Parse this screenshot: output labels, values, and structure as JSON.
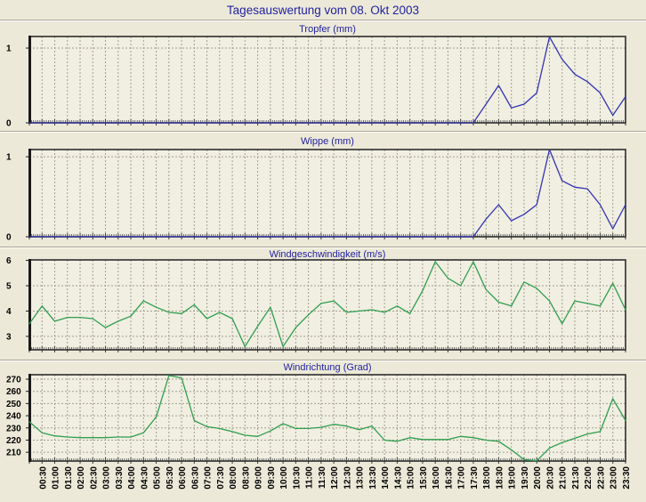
{
  "page": {
    "title": "Tagesauswertung vom 08. Okt 2003"
  },
  "colors": {
    "page_bg": "#ece9d8",
    "plot_bg": "#f1efe1",
    "grid": "#a29f90",
    "frame": "#2e2e2e",
    "title_blue": "#2222a2",
    "rain_line_blue": "#3333b3",
    "wind_line_green": "#2f9e4f",
    "tick_label": "#000000"
  },
  "chart_data": {
    "type": "line",
    "x_categories": [
      "00:00",
      "00:30",
      "01:00",
      "01:30",
      "02:00",
      "02:30",
      "03:00",
      "03:30",
      "04:00",
      "04:30",
      "05:00",
      "05:30",
      "06:00",
      "06:30",
      "07:00",
      "07:30",
      "08:00",
      "08:30",
      "09:00",
      "09:30",
      "10:00",
      "10:30",
      "11:00",
      "11:30",
      "12:00",
      "12:30",
      "13:00",
      "13:30",
      "14:00",
      "14:30",
      "15:00",
      "15:30",
      "16:00",
      "16:30",
      "17:00",
      "17:30",
      "18:00",
      "18:30",
      "19:00",
      "19:30",
      "20:00",
      "20:30",
      "21:00",
      "21:30",
      "22:00",
      "22:30",
      "23:00",
      "23:30"
    ],
    "x_axis_note": "labels shown from 00:30 to 23:30, rotated 90deg, grid on",
    "charts": [
      {
        "title": "Tropfer (mm)",
        "line_color": "#3333b3",
        "yticks": [
          0,
          1
        ],
        "ylim": [
          0,
          1.155
        ],
        "values": [
          0,
          0,
          0,
          0,
          0,
          0,
          0,
          0,
          0,
          0,
          0,
          0,
          0,
          0,
          0,
          0,
          0,
          0,
          0,
          0,
          0,
          0,
          0,
          0,
          0,
          0,
          0,
          0,
          0,
          0,
          0,
          0,
          0,
          0,
          0,
          0,
          0.25,
          0.5,
          0.2,
          0.25,
          0.4,
          1.15,
          0.85,
          0.65,
          0.55,
          0.4,
          0.1,
          0.35
        ]
      },
      {
        "title": "Wippe (mm)",
        "line_color": "#3333b3",
        "yticks": [
          0,
          1
        ],
        "ylim": [
          0,
          1.09
        ],
        "values": [
          0,
          0,
          0,
          0,
          0,
          0,
          0,
          0,
          0,
          0,
          0,
          0,
          0,
          0,
          0,
          0,
          0,
          0,
          0,
          0,
          0,
          0,
          0,
          0,
          0,
          0,
          0,
          0,
          0,
          0,
          0,
          0,
          0,
          0,
          0,
          0,
          0.22,
          0.4,
          0.2,
          0.28,
          0.4,
          1.09,
          0.7,
          0.62,
          0.6,
          0.4,
          0.1,
          0.4
        ]
      },
      {
        "title": "Windgeschwindigkeit (m/s)",
        "line_color": "#2f9e4f",
        "yticks": [
          3,
          4,
          5,
          6
        ],
        "ylim": [
          2.47,
          6.02
        ],
        "values": [
          3.5,
          4.2,
          3.6,
          3.75,
          3.75,
          3.7,
          3.35,
          3.6,
          3.8,
          4.4,
          4.15,
          3.95,
          3.9,
          4.25,
          3.7,
          3.95,
          3.7,
          2.6,
          3.4,
          4.15,
          2.6,
          3.35,
          3.85,
          4.3,
          4.4,
          3.95,
          4.0,
          4.05,
          3.95,
          4.2,
          3.9,
          4.8,
          5.95,
          5.3,
          5.0,
          5.95,
          4.85,
          4.35,
          4.2,
          5.15,
          4.9,
          4.4,
          3.5,
          4.4,
          4.3,
          4.2,
          5.1,
          4.05
        ]
      },
      {
        "title": "Windrichtung (Grad)",
        "line_color": "#2f9e4f",
        "yticks": [
          210,
          220,
          230,
          240,
          250,
          260,
          270
        ],
        "ylim": [
          202.8,
          273.65
        ],
        "values": [
          235,
          226,
          223.5,
          222.5,
          222,
          222,
          222,
          222.5,
          222.5,
          226,
          239,
          273,
          271,
          236,
          231,
          229.5,
          227,
          224,
          223,
          227.5,
          233.5,
          229.5,
          229.5,
          230.5,
          233,
          231.5,
          228.5,
          231.5,
          220,
          219,
          222,
          220.5,
          220.5,
          220.5,
          223,
          222,
          220,
          219,
          212,
          204,
          203,
          213.5,
          218,
          221.5,
          225,
          227,
          254,
          236
        ]
      }
    ]
  }
}
